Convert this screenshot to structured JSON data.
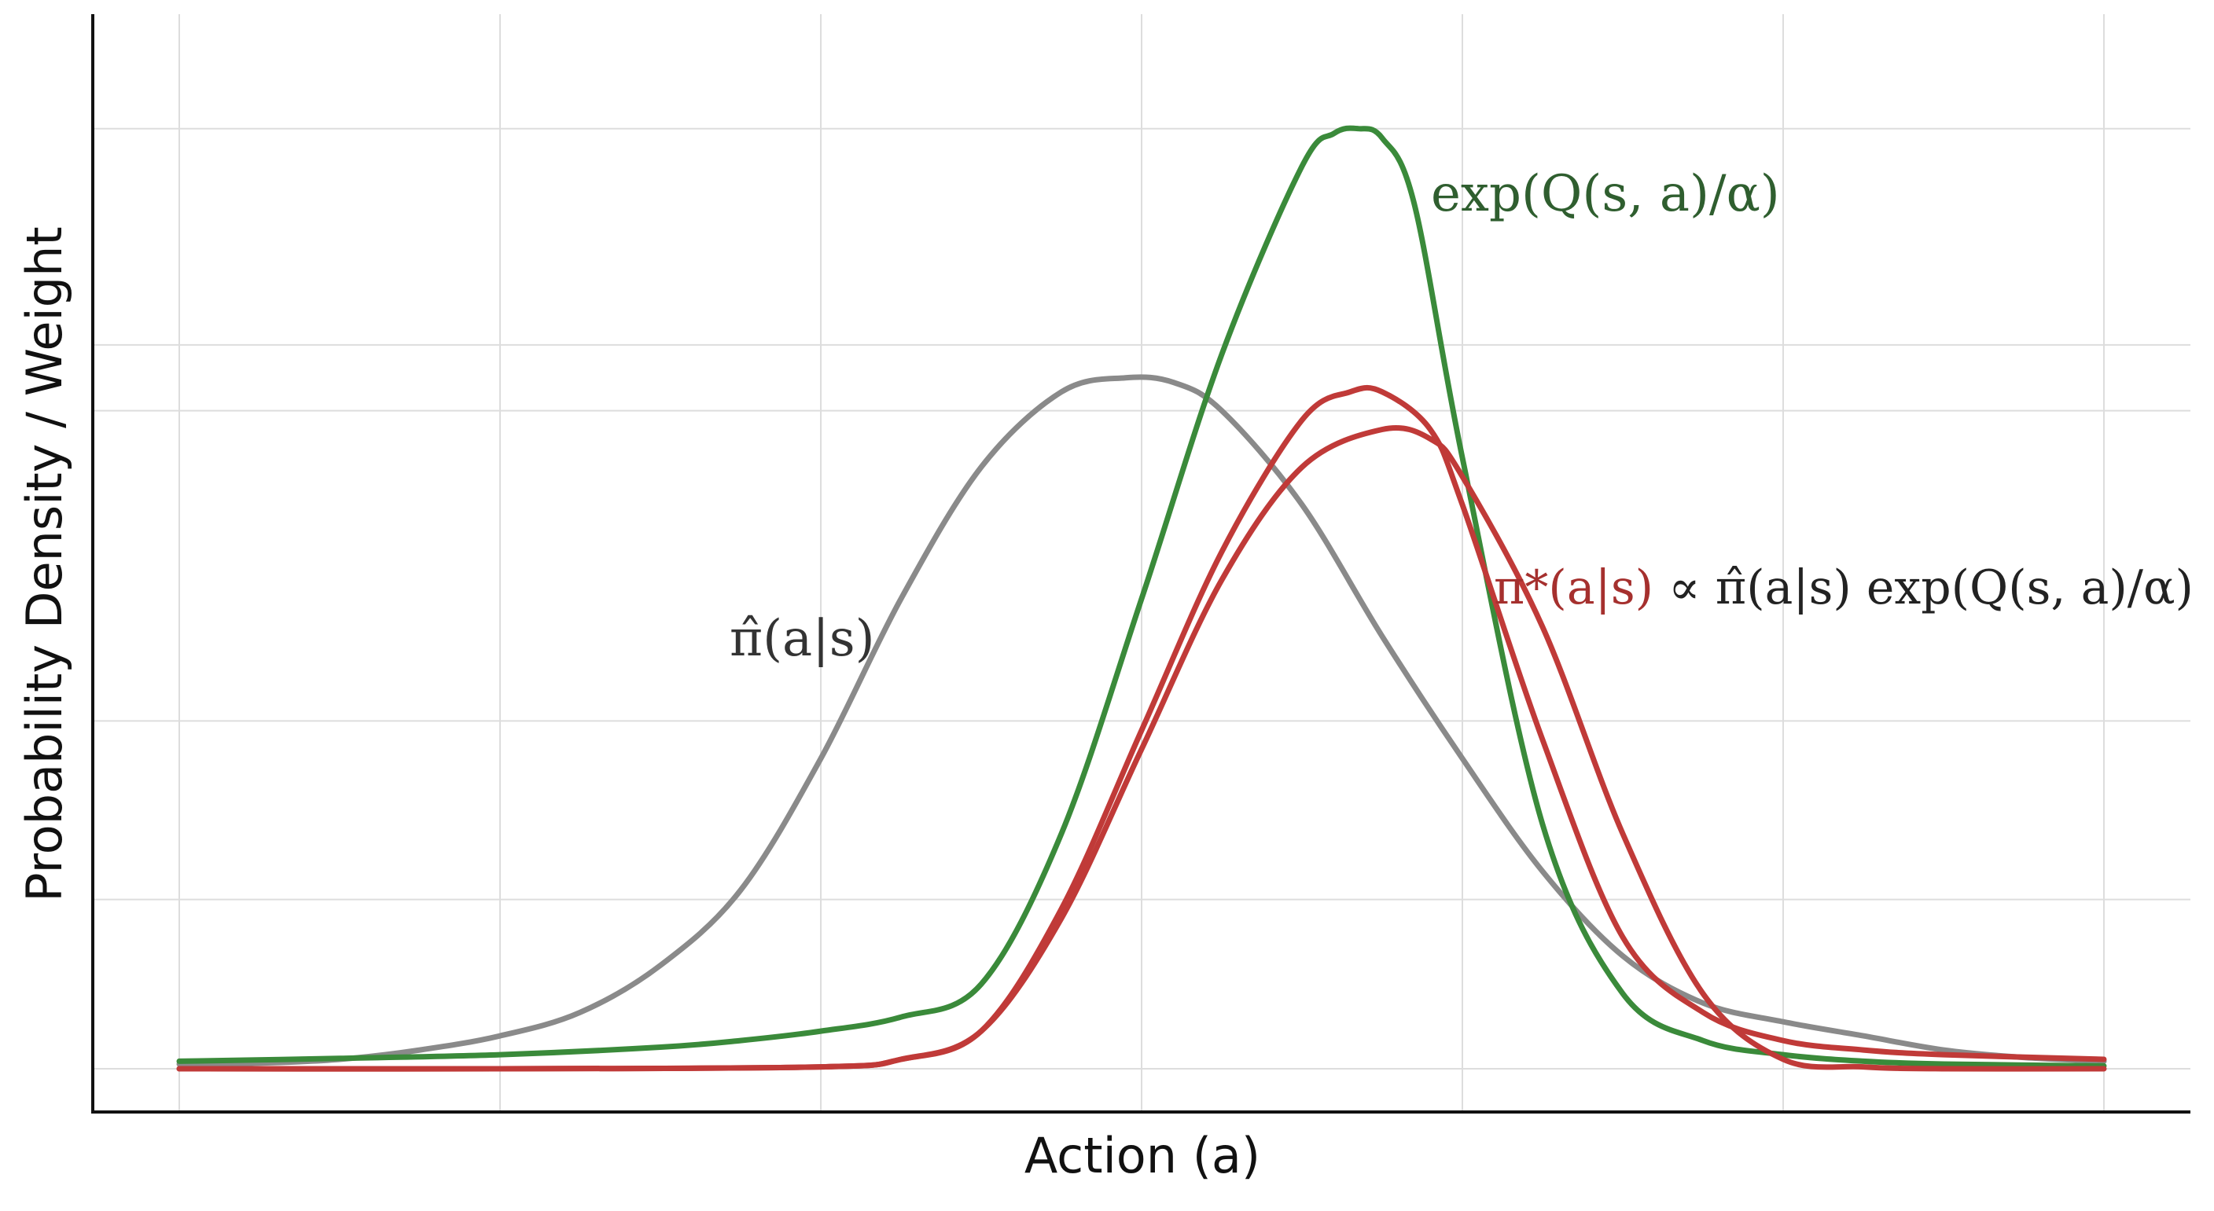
{
  "chart_data": {
    "type": "line",
    "xlabel": "Action (a)",
    "ylabel": "Probability Density / Weight",
    "xlim": [
      0,
      12
    ],
    "ylim": [
      0,
      1.07
    ],
    "grid": true,
    "tick_labels_shown": false,
    "x_gridlines": [
      0,
      2,
      4,
      6,
      8,
      10,
      12
    ],
    "y_gridlines": [
      0,
      0.18,
      0.37,
      0.7,
      0.77,
      1.0
    ],
    "series": [
      {
        "name": "π̂(a|s)",
        "color": "#8a8a8a",
        "x": [
          0,
          0.5,
          1,
          1.5,
          2,
          2.5,
          3,
          3,
          3.5,
          4,
          4.5,
          5,
          5.5,
          5.9,
          6.2,
          6.5,
          7,
          7.5,
          8,
          8.5,
          9,
          9.5,
          10,
          10.5,
          11,
          11.5,
          12
        ],
        "y": [
          0.005,
          0.006,
          0.01,
          0.02,
          0.035,
          0.06,
          0.11,
          0.11,
          0.19,
          0.33,
          0.5,
          0.64,
          0.72,
          0.735,
          0.73,
          0.7,
          0.6,
          0.46,
          0.33,
          0.21,
          0.12,
          0.07,
          0.05,
          0.035,
          0.02,
          0.012,
          0.008
        ]
      },
      {
        "name": "exp(Q(s,a)/α)",
        "color": "#3a8a3a",
        "x": [
          0,
          1,
          2,
          3,
          3.5,
          4,
          4.5,
          5,
          5.5,
          6,
          6.5,
          7,
          7.2,
          7.35,
          7.5,
          7.7,
          8,
          8.5,
          9,
          9.5,
          10,
          10.5,
          11,
          12
        ],
        "y": [
          0.008,
          0.011,
          0.015,
          0.023,
          0.03,
          0.04,
          0.055,
          0.09,
          0.25,
          0.5,
          0.76,
          0.96,
          0.995,
          1.0,
          0.99,
          0.92,
          0.65,
          0.26,
          0.08,
          0.03,
          0.015,
          0.008,
          0.005,
          0.003
        ]
      },
      {
        "name": "π*(a|s) ∝ π̂(a|s) exp(Q(s,a)/α)",
        "color": "#c03a38",
        "x": [
          0,
          2,
          4,
          4.5,
          5,
          5.5,
          6,
          6.5,
          7,
          7.3,
          7.5,
          7.8,
          8,
          8.5,
          9,
          9.5,
          10,
          10.5,
          11,
          12
        ],
        "y": [
          0.0,
          0.0,
          0.002,
          0.01,
          0.04,
          0.17,
          0.36,
          0.55,
          0.69,
          0.72,
          0.72,
          0.68,
          0.6,
          0.35,
          0.14,
          0.06,
          0.03,
          0.02,
          0.015,
          0.01
        ]
      },
      {
        "name": "",
        "color": "#c03a38",
        "x": [
          0,
          2,
          4,
          4.5,
          5,
          5.5,
          6,
          6.5,
          7,
          7.5,
          7.8,
          8,
          8.5,
          9,
          9.5,
          10,
          10.5,
          11,
          12
        ],
        "y": [
          0.0,
          0.0,
          0.002,
          0.01,
          0.04,
          0.16,
          0.34,
          0.52,
          0.64,
          0.68,
          0.67,
          0.63,
          0.47,
          0.25,
          0.08,
          0.01,
          0.002,
          0.0,
          0.0
        ]
      }
    ],
    "annotations": {
      "green_label": "exp(Q(s, a)/α)",
      "gray_label": "π̂(a|s)",
      "red_label": "π*(a|s)",
      "red_label_rest": " ∝ π̂(a|s) exp(Q(s, a)/α)"
    }
  }
}
